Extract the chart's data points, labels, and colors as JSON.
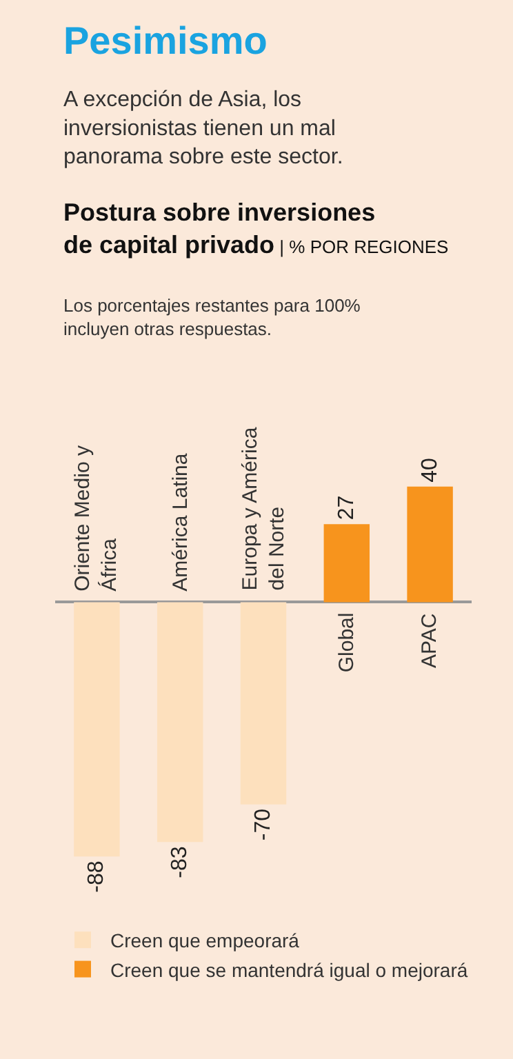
{
  "chart_data": {
    "type": "bar",
    "title": "Postura sobre inversiones de capital privado",
    "subtitle": "| % POR REGIONES",
    "annotations": [
      "Pesimismo",
      "A excepción de Asia, los inversionistas tienen un mal panorama sobre este sector.",
      "Los porcentajes restantes para 100% incluyen otras respuestas."
    ],
    "categories": [
      "Oriente Medio y África",
      "América Latina",
      "Europa y América del Norte",
      "Global",
      "APAC"
    ],
    "series": [
      {
        "name": "Creen que empeorará",
        "color": "#fde0bd",
        "values": [
          -88,
          -83,
          -70,
          null,
          null
        ]
      },
      {
        "name": "Creen que se mantendrá igual o mejorará",
        "color": "#f7941d",
        "values": [
          null,
          null,
          null,
          27,
          40
        ]
      }
    ],
    "stacked": true,
    "data_labels": true,
    "legend": "bottom",
    "grid": false
  }
}
